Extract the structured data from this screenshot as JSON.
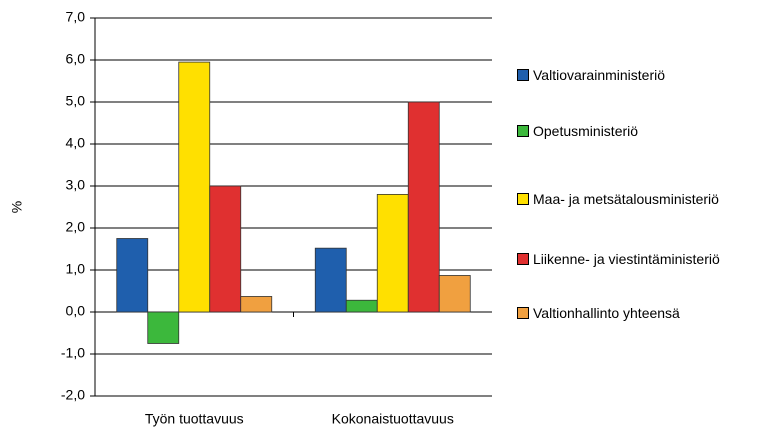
{
  "chart_data": {
    "type": "bar",
    "ylabel": "%",
    "categories": [
      "Työn tuottavuus",
      "Kokonaistuottavuus"
    ],
    "series": [
      {
        "name": "Valtiovarainministeriö",
        "color": "#1f5fad",
        "values": [
          1.75,
          1.52
        ]
      },
      {
        "name": "Opetusministeriö",
        "color": "#3cb83c",
        "values": [
          -0.75,
          0.28
        ]
      },
      {
        "name": "Maa- ja metsätalousministeriö",
        "color": "#ffe000",
        "values": [
          5.95,
          2.8
        ]
      },
      {
        "name": "Liikenne- ja viestintäministeriö",
        "color": "#e03030",
        "values": [
          3.0,
          5.0
        ]
      },
      {
        "name": "Valtionhallinto yhteensä",
        "color": "#f0a040",
        "values": [
          0.37,
          0.87
        ]
      }
    ],
    "ylim": [
      -2,
      7
    ],
    "yticks": [
      {
        "value": -2,
        "label": "-2,0"
      },
      {
        "value": -1,
        "label": "-1,0"
      },
      {
        "value": 0,
        "label": "0,0"
      },
      {
        "value": 1,
        "label": "1,0"
      },
      {
        "value": 2,
        "label": "2,0"
      },
      {
        "value": 3,
        "label": "3,0"
      },
      {
        "value": 4,
        "label": "4,0"
      },
      {
        "value": 5,
        "label": "5,0"
      },
      {
        "value": 6,
        "label": "6,0"
      },
      {
        "value": 7,
        "label": "7,0"
      }
    ],
    "grid": true
  }
}
